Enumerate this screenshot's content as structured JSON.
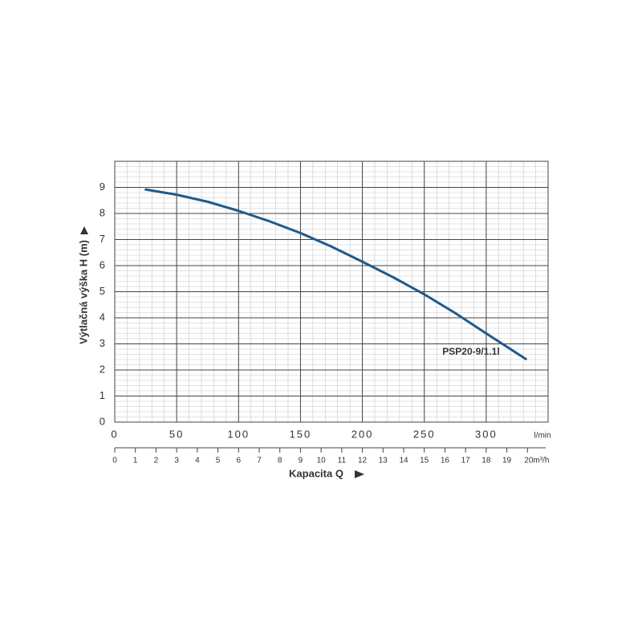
{
  "chart_data": {
    "type": "line",
    "ylabel": "Výtlačná výška H (m)",
    "xlabel": "Kapacita Q",
    "xunit": "l/min",
    "x": [
      25,
      50,
      75,
      100,
      125,
      150,
      175,
      200,
      225,
      250,
      275,
      300,
      332
    ],
    "series": [
      {
        "name": "PSP20-9/1.1l",
        "color": "#1f5a8c",
        "values": [
          8.92,
          8.72,
          8.45,
          8.1,
          7.7,
          7.25,
          6.73,
          6.15,
          5.55,
          4.9,
          4.18,
          3.4,
          2.42
        ]
      }
    ],
    "xlim": [
      0,
      350
    ],
    "xticks": [
      0,
      50,
      100,
      150,
      200,
      250,
      300
    ],
    "ylim": [
      0,
      10
    ],
    "yticks": [
      0,
      1,
      2,
      3,
      4,
      5,
      6,
      7,
      8,
      9
    ],
    "x2lim": [
      0,
      21
    ],
    "x2ticks": [
      0,
      1,
      2,
      3,
      4,
      5,
      6,
      7,
      8,
      9,
      10,
      11,
      12,
      13,
      14,
      15,
      16,
      17,
      18,
      19,
      {
        "value": 20,
        "label": "20m³/h"
      }
    ],
    "grid": true
  }
}
